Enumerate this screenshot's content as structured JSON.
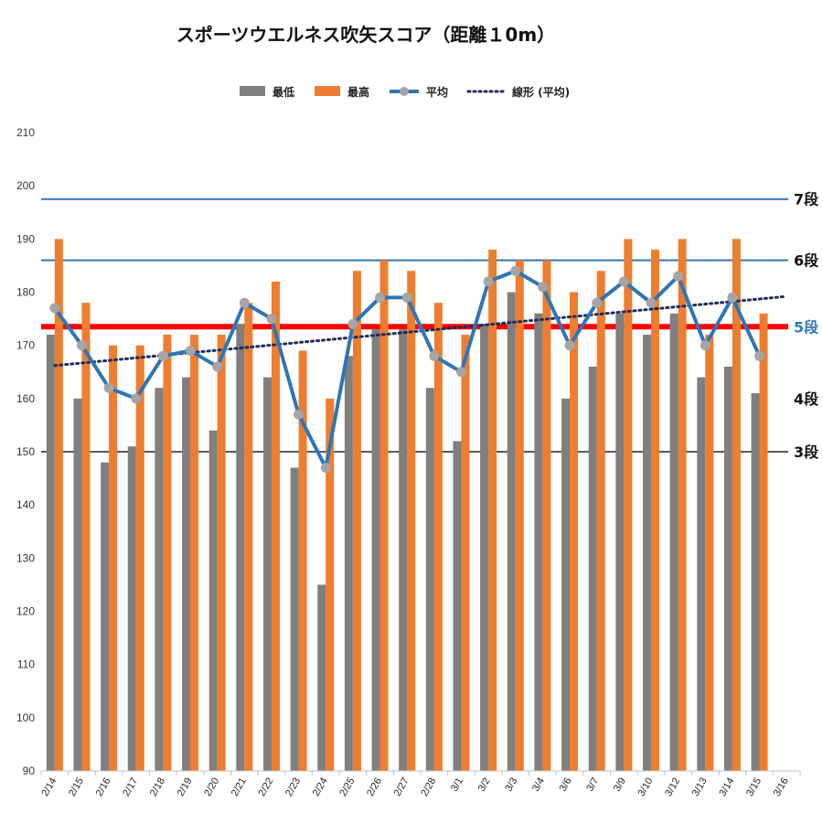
{
  "chart_data": {
    "type": "bar",
    "title": "スポーツウエルネス吹矢スコア（距離１0m）",
    "categories": [
      "2/14",
      "2/15",
      "2/16",
      "2/17",
      "2/18",
      "2/19",
      "2/20",
      "2/21",
      "2/22",
      "2/23",
      "2/24",
      "2/25",
      "2/26",
      "2/27",
      "2/28",
      "3/1",
      "3/2",
      "3/3",
      "3/4",
      "3/6",
      "3/7",
      "3/9",
      "3/10",
      "3/12",
      "3/13",
      "3/14",
      "3/15",
      "3/16"
    ],
    "ylim": [
      90,
      210
    ],
    "yticks": [
      90,
      100,
      110,
      120,
      130,
      140,
      150,
      160,
      170,
      180,
      190,
      200,
      210
    ],
    "series": [
      {
        "name": "最低",
        "type": "bar",
        "color": "#7f7f7f",
        "values": [
          172,
          160,
          148,
          151,
          162,
          164,
          154,
          174,
          164,
          147,
          125,
          168,
          173,
          173,
          162,
          152,
          174,
          180,
          176,
          160,
          166,
          176,
          172,
          176,
          164,
          166,
          161,
          null
        ]
      },
      {
        "name": "最高",
        "type": "bar",
        "color": "#ed7d31",
        "values": [
          190,
          178,
          170,
          170,
          172,
          172,
          172,
          178,
          182,
          169,
          160,
          184,
          186,
          184,
          178,
          172,
          188,
          186,
          186,
          180,
          184,
          190,
          188,
          190,
          172,
          190,
          176,
          null
        ]
      },
      {
        "name": "平均",
        "type": "line",
        "color": "#2e75b6",
        "marker_color": "#a5a5a5",
        "values": [
          177,
          170,
          162,
          160,
          168,
          169,
          166,
          178,
          175,
          157,
          147,
          174,
          179,
          179,
          168,
          165,
          182,
          184,
          181,
          170,
          178,
          182,
          178,
          183,
          170,
          179,
          168,
          null
        ]
      },
      {
        "name": "線形 (平均)",
        "type": "trendline",
        "style": "dotted",
        "color": "#1f2d5a",
        "start": 166.2,
        "end": 179.2
      }
    ],
    "reference_lines": [
      {
        "label": "7段",
        "value": 197.5,
        "color": "#2e75b6",
        "label_color": "#111111",
        "thick": false
      },
      {
        "label": "6段",
        "value": 186,
        "color": "#2e75b6",
        "label_color": "#111111",
        "thick": false
      },
      {
        "label": "5段",
        "value": 173.5,
        "color": "#ff0000",
        "label_color": "#2e75b6",
        "thick": true
      },
      {
        "label": "4段",
        "value": 160,
        "color": null,
        "label_color": "#111111",
        "thick": false
      },
      {
        "label": "3段",
        "value": 150,
        "color": "#595959",
        "label_color": "#111111",
        "thick": false
      }
    ],
    "legend_position": "top",
    "grid": false
  }
}
